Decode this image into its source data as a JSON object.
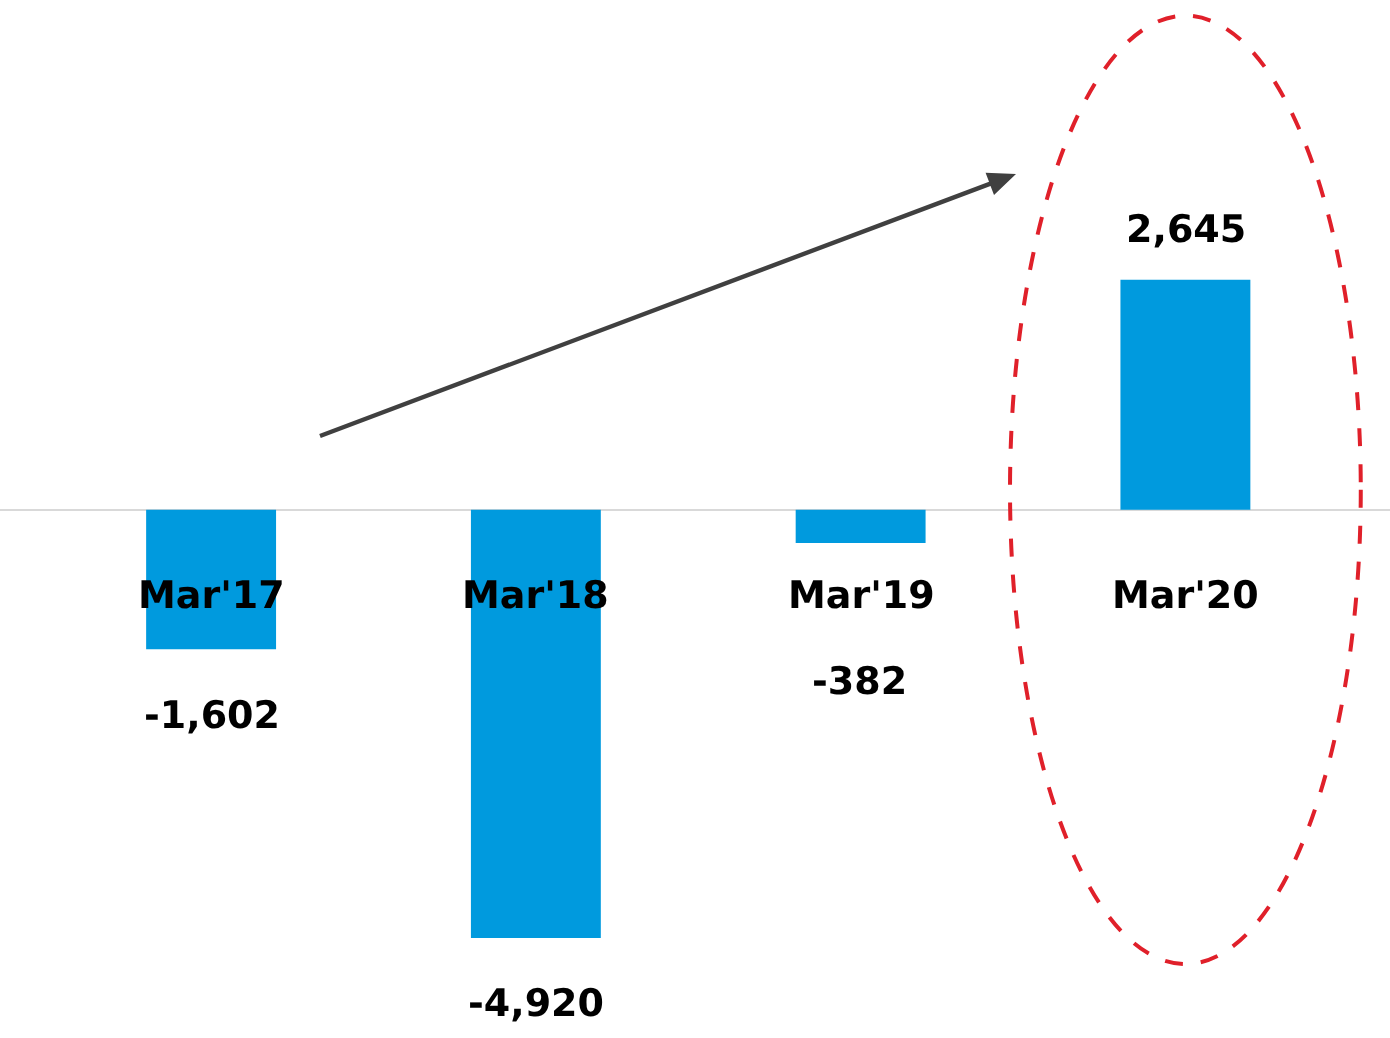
{
  "chart_data": {
    "type": "bar",
    "categories": [
      "Mar'17",
      "Mar'18",
      "Mar'19",
      "Mar'20"
    ],
    "values": [
      -1602,
      -4920,
      -382,
      2645
    ],
    "color": "#009ade",
    "value_labels": [
      "-1,602",
      "-4,920",
      "-382",
      "2,645"
    ]
  }
}
